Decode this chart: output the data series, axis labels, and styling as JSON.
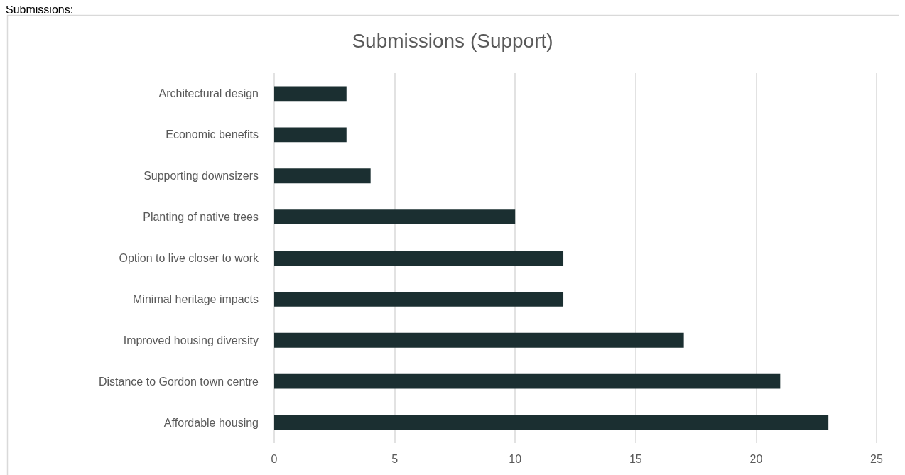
{
  "chart_data": {
    "type": "bar",
    "orientation": "horizontal",
    "title": "Submissions (Support)",
    "annotations": [
      "Submissions:"
    ],
    "categories": [
      "Architectural design",
      "Economic benefits",
      "Supporting downsizers",
      "Planting of native trees",
      "Option to live closer to work",
      "Minimal heritage impacts",
      "Improved housing diversity",
      "Distance to Gordon town centre",
      "Affordable housing"
    ],
    "values": [
      3,
      3,
      4,
      10,
      12,
      12,
      17,
      21,
      23
    ],
    "color": "#1b2f31",
    "xlim": [
      0,
      25
    ],
    "xticks": [
      0,
      5,
      10,
      15,
      20,
      25
    ],
    "grid": "x"
  }
}
